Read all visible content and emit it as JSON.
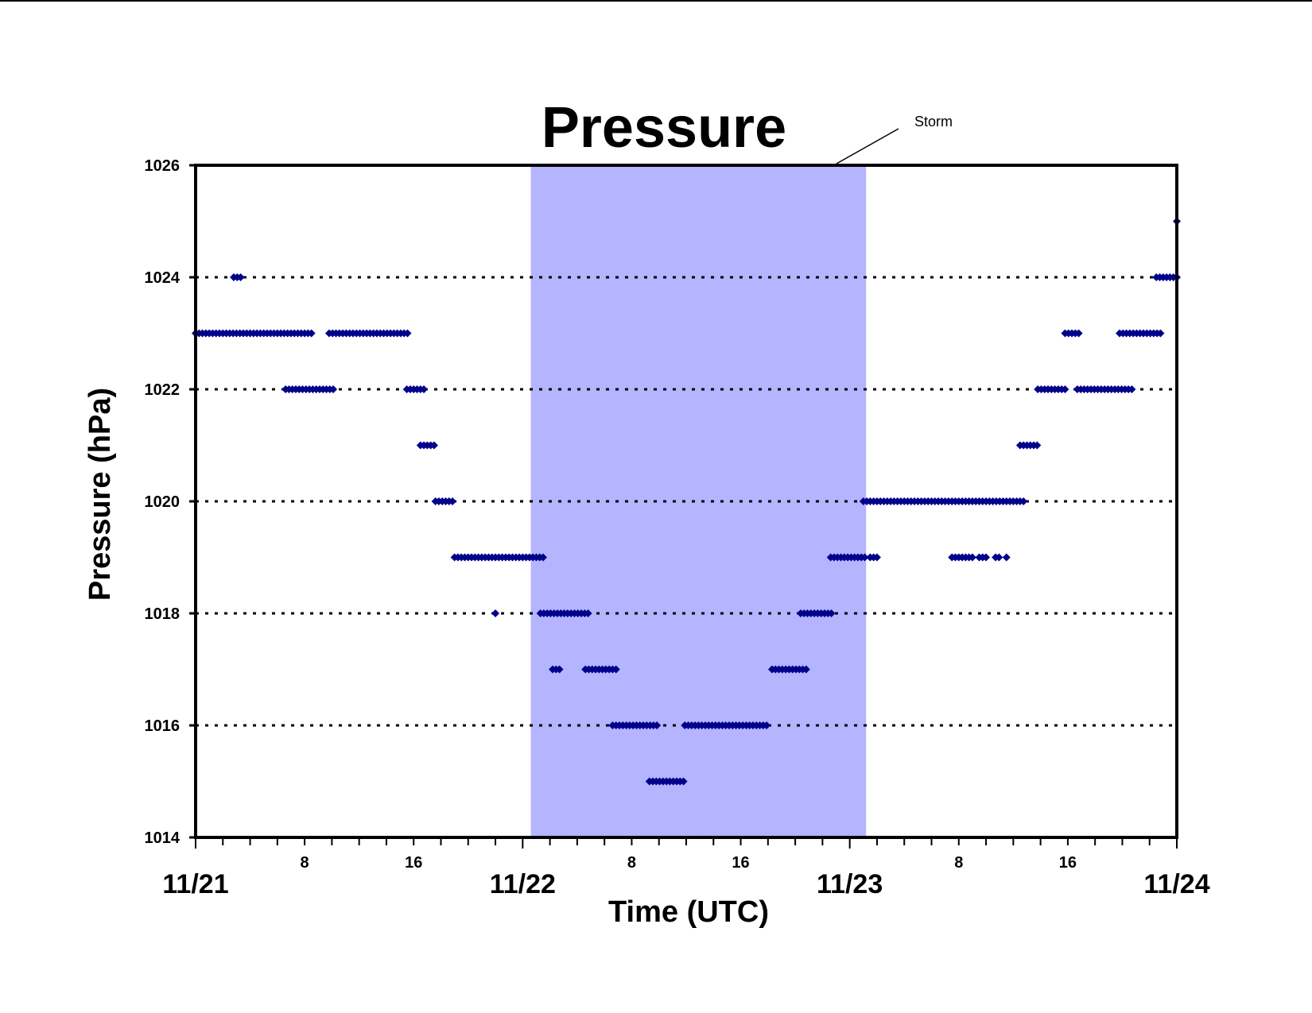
{
  "chart_data": {
    "type": "scatter",
    "title": "Pressure",
    "xlabel": "Time (UTC)",
    "ylabel": "Pressure (hPa)",
    "ylim": [
      1014,
      1026
    ],
    "y_ticks": [
      "1014",
      "1016",
      "1018",
      "1020",
      "1022",
      "1024",
      "1026"
    ],
    "x_range_hours": [
      0,
      72
    ],
    "x_hour_ticks": [
      "8",
      "16",
      "8",
      "16",
      "8",
      "16"
    ],
    "x_day_labels": [
      "11/21",
      "11/22",
      "11/23",
      "11/24"
    ],
    "gridlines": [
      1016,
      1018,
      1020,
      1022,
      1024
    ],
    "grid_style": "dotted",
    "marker_color": "#00008B",
    "shade_color": "#B4B4FF",
    "annotation": {
      "text": "Storm",
      "x_start_hours": 24.6,
      "x_end_hours": 49.2
    },
    "series_runs": [
      {
        "y": 1024,
        "x_start": 2.8,
        "x_end": 3.5
      },
      {
        "y": 1023,
        "x_start": 0.0,
        "x_end": 8.5
      },
      {
        "y": 1023,
        "x_start": 9.8,
        "x_end": 15.7
      },
      {
        "y": 1022,
        "x_start": 6.6,
        "x_end": 10.1
      },
      {
        "y": 1022,
        "x_start": 15.5,
        "x_end": 16.9
      },
      {
        "y": 1021,
        "x_start": 16.5,
        "x_end": 17.6
      },
      {
        "y": 1020,
        "x_start": 17.6,
        "x_end": 19.0
      },
      {
        "y": 1019,
        "x_start": 19.0,
        "x_end": 25.6
      },
      {
        "y": 1018,
        "x_start": 22.0,
        "x_end": 22.0
      },
      {
        "y": 1018,
        "x_start": 25.3,
        "x_end": 29.0
      },
      {
        "y": 1017,
        "x_start": 26.2,
        "x_end": 26.7
      },
      {
        "y": 1017,
        "x_start": 28.6,
        "x_end": 31.0
      },
      {
        "y": 1016,
        "x_start": 30.6,
        "x_end": 34.0
      },
      {
        "y": 1016,
        "x_start": 35.9,
        "x_end": 42.0
      },
      {
        "y": 1015,
        "x_start": 33.3,
        "x_end": 36.0
      },
      {
        "y": 1017,
        "x_start": 42.3,
        "x_end": 45.0
      },
      {
        "y": 1018,
        "x_start": 44.4,
        "x_end": 46.8
      },
      {
        "y": 1019,
        "x_start": 46.6,
        "x_end": 49.2
      },
      {
        "y": 1019,
        "x_start": 49.5,
        "x_end": 50.0
      },
      {
        "y": 1020,
        "x_start": 49.0,
        "x_end": 60.8
      },
      {
        "y": 1019,
        "x_start": 55.5,
        "x_end": 57.0
      },
      {
        "y": 1019,
        "x_start": 57.5,
        "x_end": 58.0
      },
      {
        "y": 1019,
        "x_start": 58.7,
        "x_end": 59.0
      },
      {
        "y": 1019,
        "x_start": 59.5,
        "x_end": 59.7
      },
      {
        "y": 1021,
        "x_start": 60.5,
        "x_end": 61.8
      },
      {
        "y": 1022,
        "x_start": 61.8,
        "x_end": 64.0
      },
      {
        "y": 1022,
        "x_start": 64.7,
        "x_end": 68.8
      },
      {
        "y": 1023,
        "x_start": 63.8,
        "x_end": 65.0
      },
      {
        "y": 1023,
        "x_start": 67.8,
        "x_end": 71.0
      },
      {
        "y": 1024,
        "x_start": 70.5,
        "x_end": 72.0
      },
      {
        "y": 1025,
        "x_start": 72.0,
        "x_end": 72.0
      }
    ]
  }
}
